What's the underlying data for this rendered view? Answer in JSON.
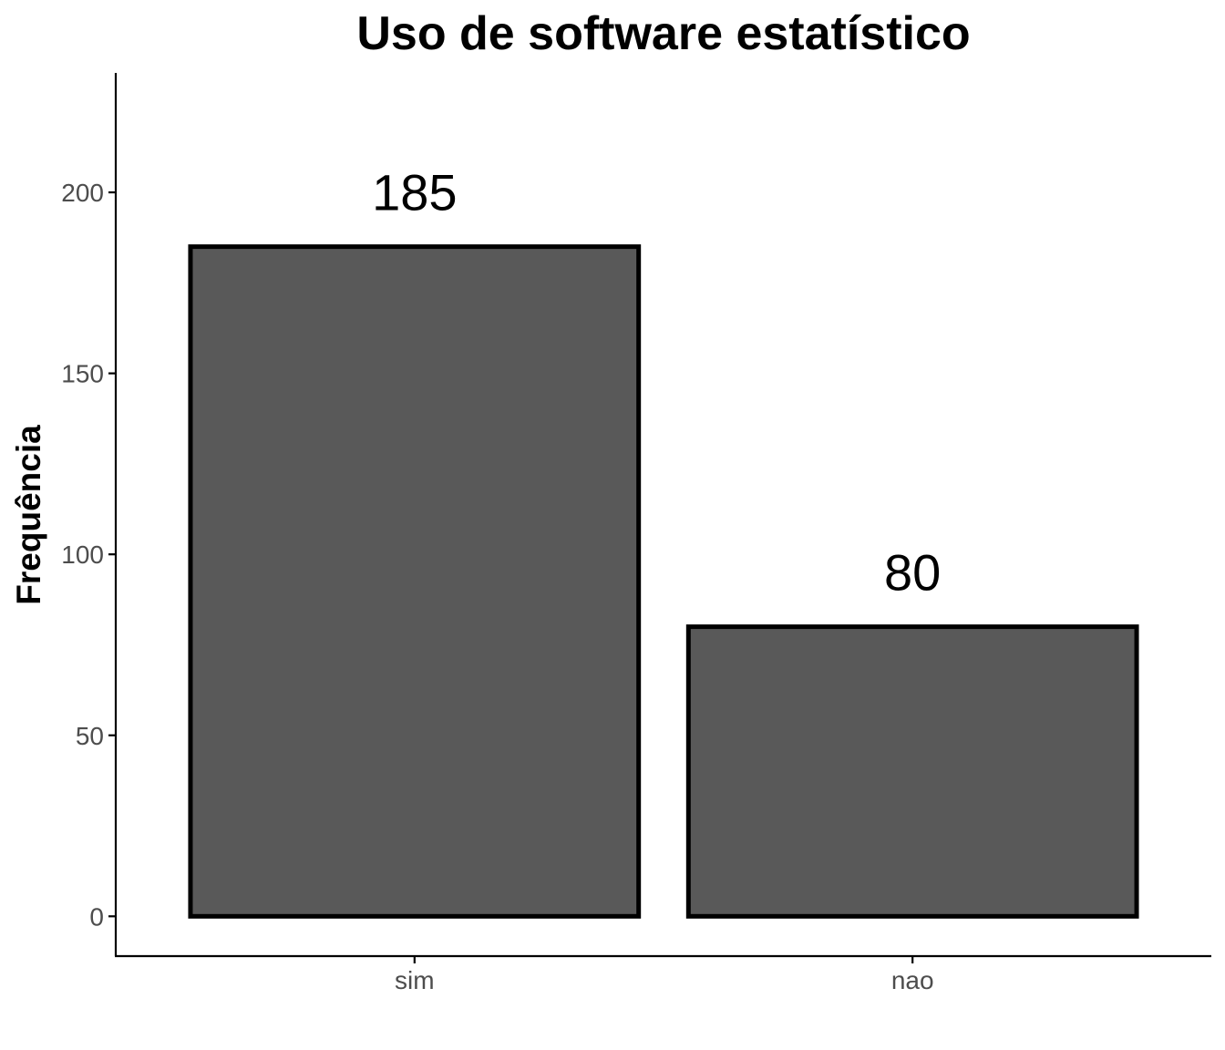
{
  "chart_data": {
    "type": "bar",
    "title": "Uso de software estatístico",
    "xlabel": "",
    "ylabel": "Frequência",
    "categories": [
      "sim",
      "nao"
    ],
    "values": [
      185,
      80
    ],
    "data_labels": [
      "185",
      "80"
    ],
    "ylim": [
      -11,
      233
    ],
    "yticks": [
      0,
      50,
      100,
      150,
      200
    ],
    "ytick_labels": [
      "0",
      "50",
      "100",
      "150",
      "200"
    ],
    "grid": false,
    "legend": "none",
    "bar_fill": "#595959",
    "bar_outline": "#000000"
  }
}
